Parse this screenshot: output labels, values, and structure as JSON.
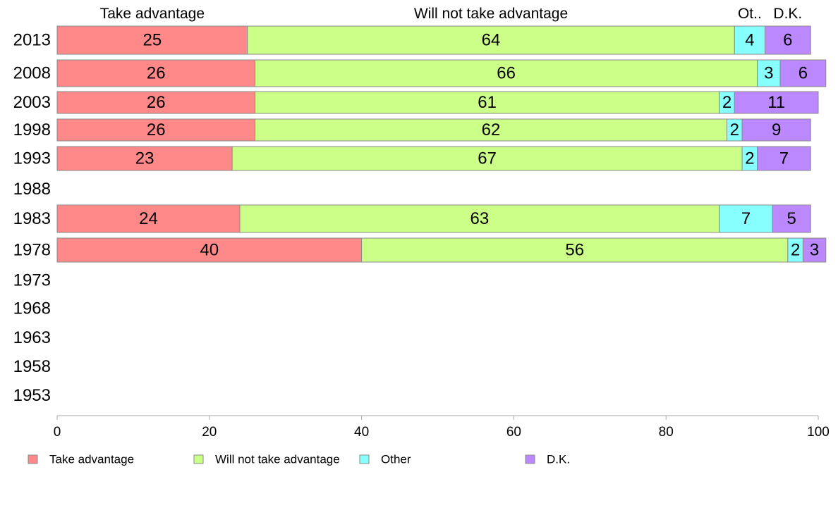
{
  "chart_data": {
    "type": "bar",
    "orientation": "horizontal",
    "stacked": true,
    "xlim": [
      0,
      100
    ],
    "x_ticks": [
      0,
      20,
      40,
      60,
      80,
      100
    ],
    "x_tick_labels": [
      "0",
      "20",
      "40",
      "60",
      "80",
      "100"
    ],
    "categories": [
      "2013",
      "2008",
      "2003",
      "1998",
      "1993",
      "1988",
      "1983",
      "1978",
      "1973",
      "1968",
      "1963",
      "1958",
      "1953"
    ],
    "series": [
      {
        "name": "Take advantage",
        "color": "#ff8888",
        "values": [
          25,
          26,
          26,
          26,
          23,
          null,
          24,
          40,
          null,
          null,
          null,
          null,
          null
        ]
      },
      {
        "name": "Will not take advantage",
        "color": "#ccff88",
        "values": [
          64,
          66,
          61,
          62,
          67,
          null,
          63,
          56,
          null,
          null,
          null,
          null,
          null
        ]
      },
      {
        "name": "Other",
        "color": "#88ffff",
        "values": [
          4,
          3,
          2,
          2,
          2,
          null,
          7,
          2,
          null,
          null,
          null,
          null,
          null
        ]
      },
      {
        "name": "D.K.",
        "color": "#bb88ff",
        "values": [
          6,
          6,
          11,
          9,
          7,
          null,
          5,
          3,
          null,
          null,
          null,
          null,
          null
        ]
      }
    ],
    "column_headers": [
      "Take advantage",
      "Will not take advantage",
      "Ot..",
      "D.K."
    ],
    "legend_position": "bottom",
    "grid": false
  }
}
